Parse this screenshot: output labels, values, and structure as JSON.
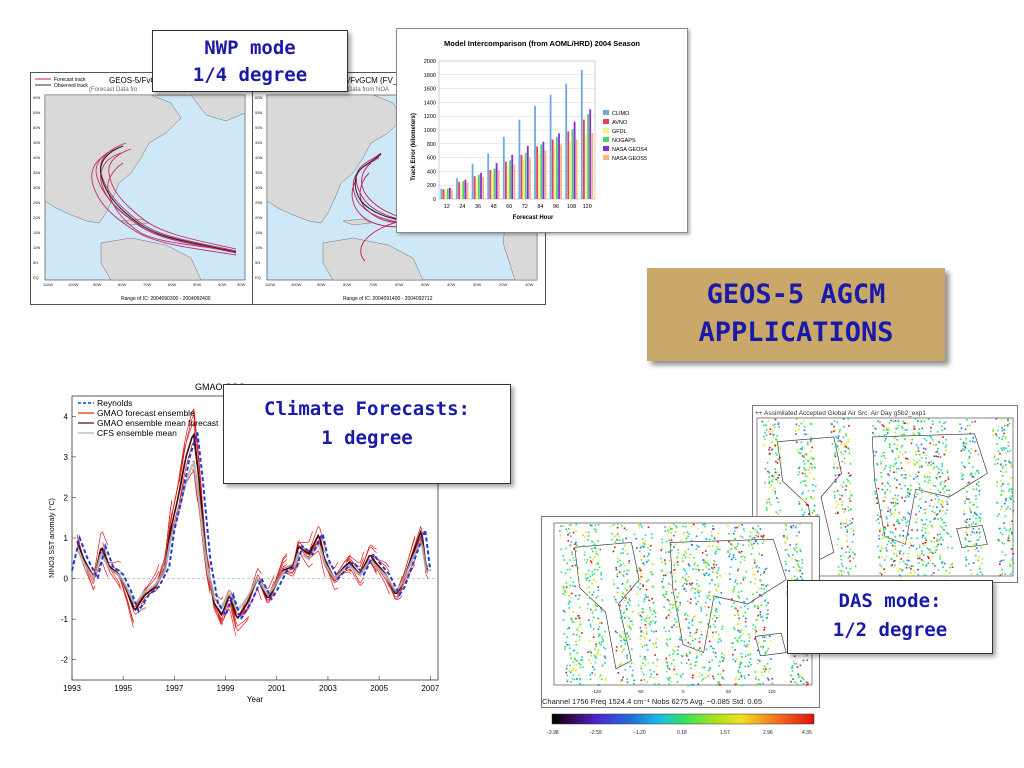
{
  "slide": {
    "title_line1": "GEOS-5 AGCM",
    "title_line2": "APPLICATIONS"
  },
  "callouts": {
    "nwp_line1": "NWP mode",
    "nwp_line2": "1/4 degree",
    "climate_line1": "Climate Forecasts:",
    "climate_line2": "1 degree",
    "das_line1": "DAS mode:",
    "das_line2": "1/2 degree"
  },
  "hurricane_maps": {
    "left": {
      "legend_forecast": "Forecast track",
      "legend_observed": "Observed track",
      "title": "GEOS-5/FvG",
      "subtitle": "(Forecast Data fro",
      "footer": "Range of IC: 2004090300 - 2004092400"
    },
    "right": {
      "title": "/FvGCM (FV_",
      "subtitle": "Data from NOA",
      "footer": "Range of IC: 2004091400 - 2004092712"
    },
    "lat_labels": [
      "60N",
      "55N",
      "50N",
      "45N",
      "40N",
      "35N",
      "30N",
      "25N",
      "20N",
      "15N",
      "10N",
      "5N",
      "EQ"
    ],
    "lon_labels": [
      "110W",
      "100W",
      "90W",
      "80W",
      "70W",
      "60W",
      "50W",
      "40W",
      "30W"
    ],
    "lon_labels_right": [
      "110W",
      "100W",
      "90W",
      "80W",
      "70W",
      "60W",
      "50W",
      "40W",
      "30W",
      "20W",
      "10W"
    ]
  },
  "chart_data": [
    {
      "type": "bar",
      "title": "Model Intercomparison (from AOML/HRD) 2004 Season",
      "xlabel": "Forecast Hour",
      "ylabel": "Track Error (kilometers)",
      "ylim": [
        0,
        2000
      ],
      "yticks": [
        0,
        200,
        400,
        600,
        800,
        1000,
        1200,
        1400,
        1600,
        1800,
        2000
      ],
      "categories": [
        "12",
        "24",
        "36",
        "48",
        "60",
        "72",
        "84",
        "96",
        "108",
        "120"
      ],
      "series": [
        {
          "name": "CLIMO",
          "color": "#6fa8dc",
          "values": [
            150,
            300,
            510,
            660,
            900,
            1150,
            1350,
            1510,
            1670,
            1870
          ]
        },
        {
          "name": "AVNO",
          "color": "#e0445a",
          "values": [
            140,
            250,
            330,
            420,
            540,
            640,
            760,
            860,
            980,
            1150
          ]
        },
        {
          "name": "GFDL",
          "color": "#f2f28a",
          "values": [
            120,
            220,
            300,
            390,
            480,
            570,
            660,
            760,
            840,
            930
          ]
        },
        {
          "name": "NOGAPS",
          "color": "#4cd06a",
          "values": [
            150,
            260,
            350,
            440,
            560,
            670,
            790,
            900,
            1010,
            1230
          ]
        },
        {
          "name": "NASA GEOS4",
          "color": "#8a2ad6",
          "values": [
            160,
            280,
            380,
            520,
            640,
            770,
            830,
            950,
            1120,
            1300
          ]
        },
        {
          "name": "NASA GEOS5",
          "color": "#f4b67a",
          "values": [
            140,
            240,
            320,
            420,
            500,
            600,
            700,
            790,
            860,
            960
          ]
        }
      ],
      "legend": "right"
    },
    {
      "type": "line",
      "title": "GMAO CGC",
      "xlabel": "Year",
      "ylabel": "NINO3 SST anomaly (°C)",
      "xlim": [
        1993,
        2007.3
      ],
      "ylim": [
        -2.5,
        4.5
      ],
      "xticks": [
        1993,
        1995,
        1997,
        1999,
        2001,
        2003,
        2005,
        2007
      ],
      "yticks": [
        -2,
        -1,
        0,
        1,
        2,
        3,
        4
      ],
      "legend": "top-left",
      "series": [
        {
          "name": "Reynolds",
          "color": "#1f3ad6",
          "style": "dashed",
          "x": [
            1993,
            1993.3,
            1993.6,
            1994,
            1994.3,
            1994.6,
            1995,
            1995.3,
            1995.6,
            1996,
            1996.4,
            1996.8,
            1997,
            1997.3,
            1997.6,
            1997.9,
            1998.1,
            1998.4,
            1998.7,
            1999,
            1999.3,
            1999.6,
            2000,
            2000.4,
            2000.8,
            2001,
            2001.4,
            2001.8,
            2002,
            2002.4,
            2002.8,
            2003,
            2003.4,
            2003.8,
            2004,
            2004.4,
            2004.8,
            2005,
            2005.4,
            2005.8,
            2006,
            2006.4,
            2006.8,
            2007
          ],
          "y": [
            0.2,
            1.0,
            0.5,
            0.0,
            0.8,
            0.3,
            0.1,
            -0.3,
            -0.8,
            -0.4,
            -0.2,
            0.3,
            1.2,
            2.0,
            3.0,
            3.6,
            2.5,
            0.5,
            -0.6,
            -0.9,
            -0.4,
            -1.0,
            -0.6,
            0.0,
            -0.5,
            -0.3,
            0.2,
            0.3,
            0.8,
            0.6,
            1.1,
            0.5,
            0.0,
            0.3,
            0.4,
            0.1,
            0.6,
            0.4,
            0.1,
            -0.4,
            -0.2,
            0.5,
            1.2,
            0.2
          ]
        },
        {
          "name": "GMAO forecast ensemble",
          "color": "#e31a1c",
          "style": "solid"
        },
        {
          "name": "GMAO ensemble mean forecast",
          "color": "#3b0a0a",
          "style": "solid"
        },
        {
          "name": "CFS ensemble mean",
          "color": "#b0b0b0",
          "style": "solid"
        }
      ]
    }
  ],
  "das_maps": {
    "back_header": "++ Assimilated    Accepted   Global   Air Src.   Air Day   g5b2_exp1",
    "front_footer": "Channel 1756  Freq 1524.4 cm⁻¹  Nobs  6275  Avg. −0.085  Std. 0.65",
    "front_lon_labels": [
      "-120",
      "-60",
      "0",
      "60",
      "120"
    ],
    "colorbar_ticks": [
      "−3.98",
      "−2.59",
      "−1.20",
      "0.18",
      "1.57",
      "2.96",
      "4.35"
    ]
  }
}
